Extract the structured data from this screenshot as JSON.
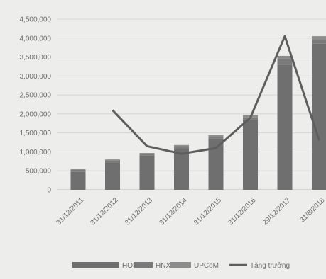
{
  "chart_data": {
    "type": "bar",
    "categories": [
      "31/12/2011",
      "31/12/2012",
      "31/12/2013",
      "31/12/2014",
      "31/12/2015",
      "31/12/2016",
      "29/12/2017",
      "31/8/2018"
    ],
    "series": [
      {
        "name": "HOSE",
        "type": "bar",
        "values": [
          470000,
          710000,
          900000,
          1100000,
          1350000,
          1850000,
          3300000,
          3850000
        ]
      },
      {
        "name": "HNX",
        "type": "bar",
        "values": [
          60000,
          70000,
          50000,
          50000,
          40000,
          60000,
          150000,
          100000
        ]
      },
      {
        "name": "UPCoM",
        "type": "bar",
        "values": [
          20000,
          20000,
          20000,
          30000,
          50000,
          60000,
          80000,
          100000
        ]
      },
      {
        "name": "Tăng trưởng",
        "type": "line",
        "values": [
          null,
          2100000,
          1150000,
          950000,
          1100000,
          1900000,
          4050000,
          1300000
        ]
      }
    ],
    "y_ticks": [
      "0",
      "500,000",
      "1,000,000",
      "1,500,000",
      "2,000,000",
      "2,500,000",
      "3,000,000",
      "3,500,000",
      "4,000,000",
      "4,500,000"
    ],
    "ylim": [
      0,
      4500000
    ],
    "grid": true,
    "legend_position": "bottom",
    "colors": {
      "HOSE": "#6f6f6f",
      "HNX": "#7a7a7a",
      "UPCoM": "#8c8c8c",
      "Tăng trưởng": "#5e5e5e",
      "grid": "#d6d6d4",
      "axis": "#bdbdbb"
    }
  }
}
